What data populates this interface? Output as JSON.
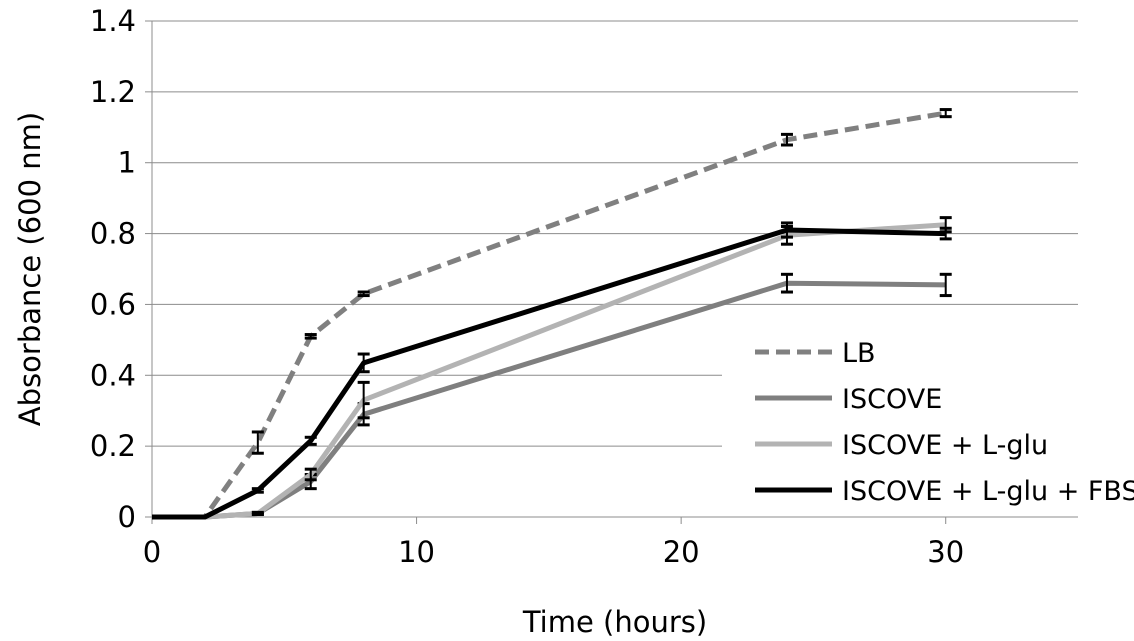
{
  "chart_data": {
    "type": "line",
    "title": "",
    "xlabel": "Time (hours)",
    "ylabel": "Absorbance (600 nm)",
    "xlim": [
      0,
      35
    ],
    "ylim": [
      0,
      1.4
    ],
    "xticks": [
      "0",
      "10",
      "20",
      "30"
    ],
    "yticks": [
      "0",
      "0.2",
      "0.4",
      "0.6",
      "0.8",
      "1",
      "1.2",
      "1.4"
    ],
    "grid": "horizontal",
    "legend_position": "bottom-right",
    "x": [
      0,
      2,
      4,
      6,
      8,
      24,
      30
    ],
    "series": [
      {
        "name": "LB",
        "color": "#808080",
        "dash": true,
        "values": [
          0,
          0,
          0.21,
          0.51,
          0.63,
          1.065,
          1.14
        ],
        "errors": [
          0,
          0,
          0.03,
          0.005,
          0.005,
          0.015,
          0.01
        ]
      },
      {
        "name": "ISCOVE",
        "color": "#7f7f7f",
        "dash": false,
        "values": [
          0,
          0,
          0.01,
          0.1,
          0.29,
          0.66,
          0.655
        ],
        "errors": [
          0,
          0,
          0.003,
          0.02,
          0.03,
          0.025,
          0.03
        ]
      },
      {
        "name": "ISCOVE + L-glu",
        "color": "#b3b3b3",
        "dash": false,
        "values": [
          0,
          0,
          0.01,
          0.12,
          0.33,
          0.795,
          0.825
        ],
        "errors": [
          0,
          0,
          0.003,
          0.015,
          0.05,
          0.025,
          0.02
        ]
      },
      {
        "name": "ISCOVE + L-glu + FBS",
        "color": "#000000",
        "dash": false,
        "values": [
          0,
          0,
          0.075,
          0.215,
          0.435,
          0.81,
          0.8
        ],
        "errors": [
          0,
          0,
          0.005,
          0.01,
          0.025,
          0.02,
          0.015
        ]
      }
    ]
  }
}
